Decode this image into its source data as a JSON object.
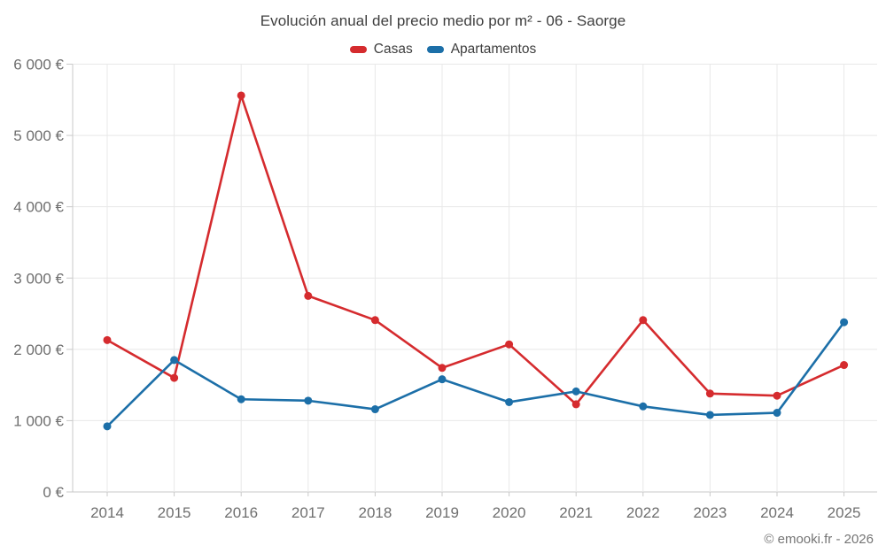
{
  "title": "Evolución anual del precio medio por m² - 06 - Saorge",
  "footer": "© emooki.fr - 2026",
  "legend": {
    "items": [
      {
        "label": "Casas",
        "color": "#d52b2e"
      },
      {
        "label": "Apartamentos",
        "color": "#1c6fa8"
      }
    ]
  },
  "chart_data": {
    "type": "line",
    "title": "Evolución anual del precio medio por m² - 06 - Saorge",
    "x": [
      2014,
      2015,
      2016,
      2017,
      2018,
      2019,
      2020,
      2021,
      2022,
      2023,
      2024,
      2025
    ],
    "x_tick_labels": [
      "2014",
      "2015",
      "2016",
      "2017",
      "2018",
      "2019",
      "2020",
      "2021",
      "2022",
      "2023",
      "2024",
      "2025"
    ],
    "series": [
      {
        "name": "Casas",
        "color": "#d52b2e",
        "values": [
          2130,
          1600,
          5560,
          2750,
          2410,
          1740,
          2070,
          1230,
          2410,
          1380,
          1350,
          1780
        ]
      },
      {
        "name": "Apartamentos",
        "color": "#1c6fa8",
        "values": [
          920,
          1850,
          1300,
          1280,
          1160,
          1580,
          1260,
          1410,
          1200,
          1080,
          1110,
          2380
        ]
      }
    ],
    "ylim": [
      0,
      6000
    ],
    "y_ticks": [
      0,
      1000,
      2000,
      3000,
      4000,
      5000,
      6000
    ],
    "y_tick_labels": [
      "0 €",
      "1 000 €",
      "2 000 €",
      "3 000 €",
      "4 000 €",
      "5 000 €",
      "6 000 €"
    ],
    "y_unit": "€",
    "grid": true,
    "legend_position": "top",
    "colors": {
      "grid": "#e8e8e8",
      "axis": "#c9c9c9",
      "tick_label": "#6f6f6f"
    }
  }
}
